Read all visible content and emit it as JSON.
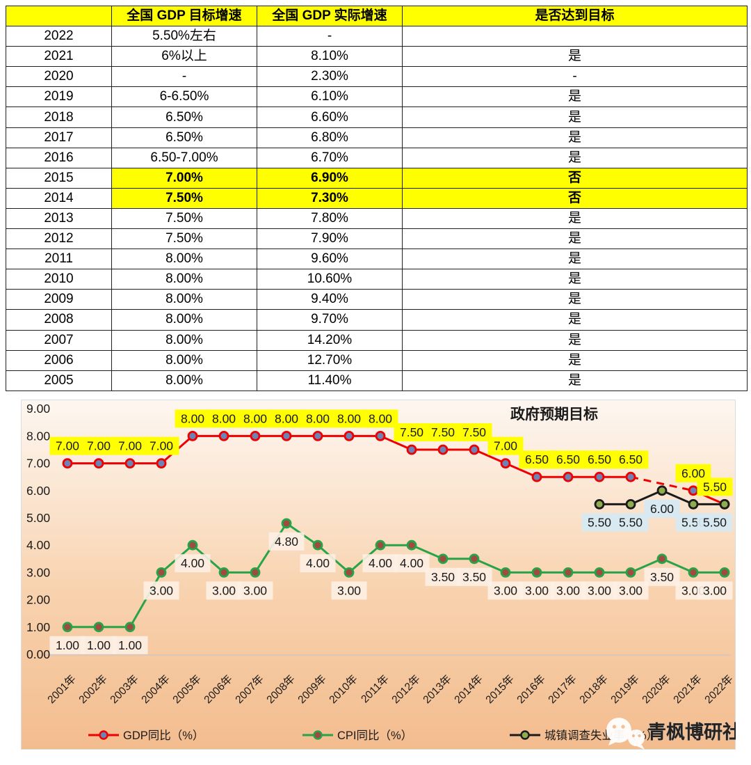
{
  "table": {
    "headers": [
      "",
      "全国 GDP 目标增速",
      "全国 GDP 实际增速",
      "是否达到目标"
    ],
    "highlight_color": "#FFFF00",
    "rows": [
      {
        "year": "2022",
        "target": "5.50%左右",
        "actual": "-",
        "met": "",
        "highlight": false
      },
      {
        "year": "2021",
        "target": "6%以上",
        "actual": "8.10%",
        "met": "是",
        "highlight": false
      },
      {
        "year": "2020",
        "target": "-",
        "actual": "2.30%",
        "met": "-",
        "highlight": false
      },
      {
        "year": "2019",
        "target": "6-6.50%",
        "actual": "6.10%",
        "met": "是",
        "highlight": false
      },
      {
        "year": "2018",
        "target": "6.50%",
        "actual": "6.60%",
        "met": "是",
        "highlight": false
      },
      {
        "year": "2017",
        "target": "6.50%",
        "actual": "6.80%",
        "met": "是",
        "highlight": false
      },
      {
        "year": "2016",
        "target": "6.50-7.00%",
        "actual": "6.70%",
        "met": "是",
        "highlight": false
      },
      {
        "year": "2015",
        "target": "7.00%",
        "actual": "6.90%",
        "met": "否",
        "highlight": true
      },
      {
        "year": "2014",
        "target": "7.50%",
        "actual": "7.30%",
        "met": "否",
        "highlight": true
      },
      {
        "year": "2013",
        "target": "7.50%",
        "actual": "7.80%",
        "met": "是",
        "highlight": false
      },
      {
        "year": "2012",
        "target": "7.50%",
        "actual": "7.90%",
        "met": "是",
        "highlight": false
      },
      {
        "year": "2011",
        "target": "8.00%",
        "actual": "9.60%",
        "met": "是",
        "highlight": false
      },
      {
        "year": "2010",
        "target": "8.00%",
        "actual": "10.60%",
        "met": "是",
        "highlight": false
      },
      {
        "year": "2009",
        "target": "8.00%",
        "actual": "9.40%",
        "met": "是",
        "highlight": false
      },
      {
        "year": "2008",
        "target": "8.00%",
        "actual": "9.70%",
        "met": "是",
        "highlight": false
      },
      {
        "year": "2007",
        "target": "8.00%",
        "actual": "14.20%",
        "met": "是",
        "highlight": false
      },
      {
        "year": "2006",
        "target": "8.00%",
        "actual": "12.70%",
        "met": "是",
        "highlight": false
      },
      {
        "year": "2005",
        "target": "8.00%",
        "actual": "11.40%",
        "met": "是",
        "highlight": false
      }
    ]
  },
  "chart_data": {
    "type": "line",
    "title": "政府预期目标",
    "x_categories": [
      "2001年",
      "2002年",
      "2003年",
      "2004年",
      "2005年",
      "2006年",
      "2007年",
      "2008年",
      "2009年",
      "2010年",
      "2011年",
      "2012年",
      "2013年",
      "2014年",
      "2015年",
      "2016年",
      "2017年",
      "2018年",
      "2019年",
      "2020年",
      "2021年",
      "2022年"
    ],
    "ylim": [
      0,
      9
    ],
    "ytick_step": 1,
    "grid": false,
    "legend_position": "bottom",
    "plot_bg_gradient": [
      "#FDF6F0",
      "#FBE7D4",
      "#F8D2AE",
      "#F5C69C",
      "#F3BC8F"
    ],
    "series": [
      {
        "name": "GDP同比（%）",
        "line_color": "#EE0000",
        "marker_fill": "#6B83B5",
        "label_bg": "#FFFF00",
        "label_bg_opacity": 1,
        "label_position": "above",
        "values": [
          7.0,
          7.0,
          7.0,
          7.0,
          8.0,
          8.0,
          8.0,
          8.0,
          8.0,
          8.0,
          8.0,
          7.5,
          7.5,
          7.5,
          7.0,
          6.5,
          6.5,
          6.5,
          6.5,
          null,
          6.0,
          5.5
        ]
      },
      {
        "name": "CPI同比（%）",
        "line_color": "#27A348",
        "marker_fill": "#A04A42",
        "label_bg": "#FDF0E4",
        "label_bg_opacity": 0.9,
        "label_position": "below",
        "values": [
          1.0,
          1.0,
          1.0,
          3.0,
          4.0,
          3.0,
          3.0,
          4.8,
          4.0,
          3.0,
          4.0,
          4.0,
          3.5,
          3.5,
          3.0,
          3.0,
          3.0,
          3.0,
          3.0,
          3.5,
          3.0,
          3.0
        ]
      },
      {
        "name": "城镇调查失业率（%）",
        "line_color": "#1A1A1A",
        "marker_fill": "#8FAC4E",
        "label_bg": "#D7E9F2",
        "label_bg_opacity": 0.95,
        "label_position": "below",
        "values": [
          null,
          null,
          null,
          null,
          null,
          null,
          null,
          null,
          null,
          null,
          null,
          null,
          null,
          null,
          null,
          null,
          null,
          5.5,
          5.5,
          6.0,
          5.5,
          5.5
        ]
      }
    ]
  },
  "watermark": {
    "icon": "wechat-icon",
    "text": "青枫博研社",
    "color": "#FFFFFF"
  }
}
